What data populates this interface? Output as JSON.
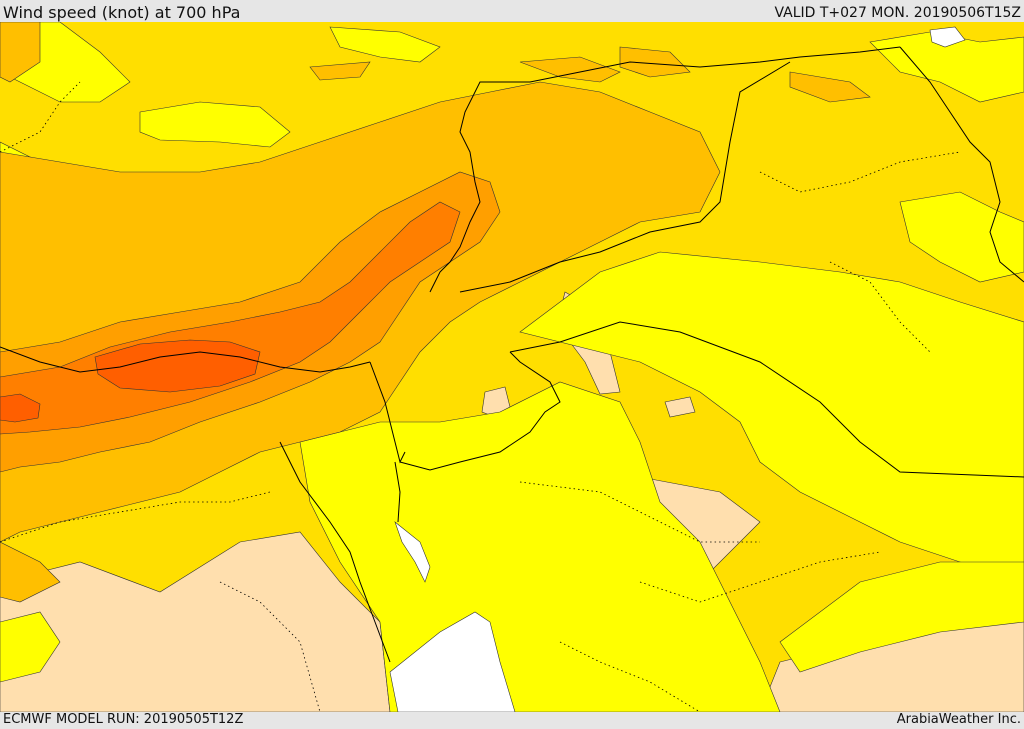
{
  "header": {
    "title": "Wind speed (knot) at 700 hPa",
    "valid": "VALID T+027 MON. 20190506T15Z"
  },
  "footer": {
    "model_run": "ECMWF MODEL RUN: 20190505T12Z",
    "credit": "ArabiaWeather Inc."
  },
  "map": {
    "field": "wind speed 700 hPa",
    "colors": {
      "band_1": "#ffdfae",
      "band_2": "#ffff00",
      "band_3": "#ffdf00",
      "band_4": "#ffbf00",
      "band_5": "#ff9f00",
      "band_6": "#ff7f00",
      "band_7": "#ff5f00",
      "sea_no_data": "#ffffff",
      "borders": "#000000"
    }
  }
}
